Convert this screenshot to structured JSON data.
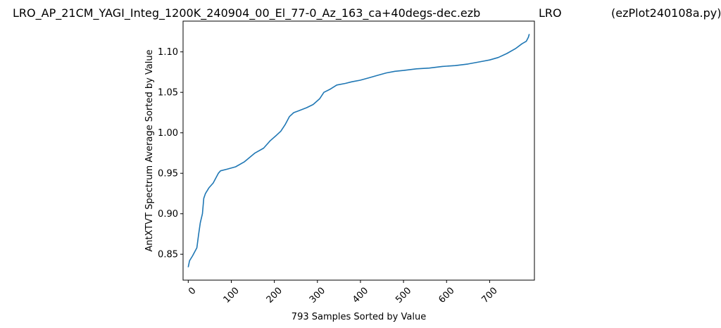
{
  "header": {
    "filename": "LRO_AP_21CM_YAGI_Integ_1200K_240904_00_El_77-0_Az_163_ca+40degs-dec.ezb",
    "station": "LRO",
    "program": "(ezPlot240108a.py)"
  },
  "chart_data": {
    "type": "line",
    "title": "LRO_AP_21CM_YAGI_Integ_1200K_240904_00_El_77-0_Az_163_ca+40degs-dec.ezb",
    "xlabel": "793 Samples Sorted by Value",
    "ylabel": "AntXTVT Spectrum Average Sorted by Value",
    "xlim": [
      -12,
      804
    ],
    "ylim": [
      0.818,
      1.138
    ],
    "xticks": [
      0,
      100,
      200,
      300,
      400,
      500,
      600,
      700
    ],
    "yticks": [
      0.85,
      0.9,
      0.95,
      1.0,
      1.05,
      1.1
    ],
    "ytick_labels": [
      "0.85",
      "0.90",
      "0.95",
      "1.00",
      "1.05",
      "1.10"
    ],
    "grid": false,
    "series": [
      {
        "color": "#1f77b4",
        "x": [
          0,
          3,
          10,
          20,
          24,
          28,
          33,
          36,
          40,
          48,
          58,
          70,
          75,
          90,
          110,
          130,
          155,
          175,
          190,
          205,
          215,
          225,
          235,
          245,
          255,
          275,
          290,
          305,
          315,
          330,
          345,
          365,
          380,
          400,
          420,
          440,
          460,
          480,
          500,
          530,
          560,
          590,
          620,
          650,
          680,
          700,
          720,
          740,
          760,
          775,
          785,
          790,
          792
        ],
        "y": [
          0.834,
          0.842,
          0.848,
          0.858,
          0.874,
          0.889,
          0.9,
          0.919,
          0.925,
          0.932,
          0.938,
          0.95,
          0.953,
          0.955,
          0.958,
          0.964,
          0.975,
          0.981,
          0.99,
          0.997,
          1.002,
          1.01,
          1.02,
          1.025,
          1.027,
          1.031,
          1.035,
          1.042,
          1.05,
          1.054,
          1.059,
          1.061,
          1.063,
          1.065,
          1.068,
          1.071,
          1.074,
          1.076,
          1.077,
          1.079,
          1.08,
          1.082,
          1.083,
          1.085,
          1.088,
          1.09,
          1.093,
          1.098,
          1.104,
          1.11,
          1.113,
          1.118,
          1.122
        ]
      }
    ]
  }
}
